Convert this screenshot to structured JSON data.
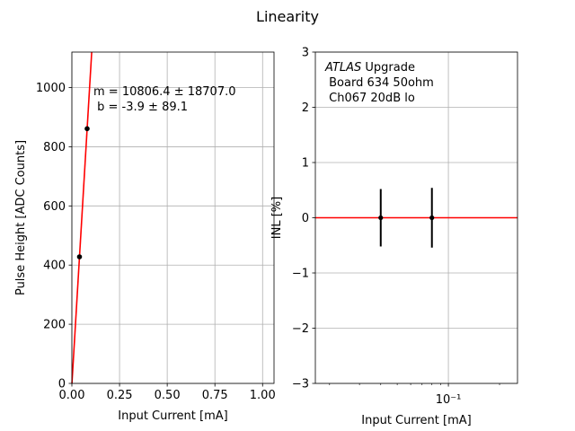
{
  "figure": {
    "title": "Linearity"
  },
  "chart_data": [
    {
      "type": "scatter",
      "title": "",
      "xlabel": "Input Current [mA]",
      "ylabel": "Pulse Height [ADC Counts]",
      "xlim": [
        0,
        1.06
      ],
      "ylim": [
        0,
        1120
      ],
      "xticks": [
        0.0,
        0.25,
        0.5,
        0.75,
        1.0
      ],
      "xtick_labels": [
        "0.00",
        "0.25",
        "0.50",
        "0.75",
        "1.00"
      ],
      "yticks": [
        0,
        200,
        400,
        600,
        800,
        1000
      ],
      "ytick_labels": [
        "0",
        "200",
        "400",
        "600",
        "800",
        "1000"
      ],
      "grid": true,
      "points": [
        {
          "x": 0.04,
          "y": 428
        },
        {
          "x": 0.08,
          "y": 861
        }
      ],
      "fit_line": {
        "slope": 10806.4,
        "intercept": -3.9,
        "color": "#ff0000"
      },
      "annotation": [
        "m = 10806.4 ± 18707.0",
        " b = -3.9 ± 89.1"
      ]
    },
    {
      "type": "scatter",
      "title": "",
      "xlabel": "Input Current [mA]",
      "ylabel": "INL [%]",
      "xscale": "log",
      "xlim": [
        0.0165,
        0.255
      ],
      "ylim": [
        -3,
        3
      ],
      "xticks_major": [
        0.1
      ],
      "xtick_labels": [
        "10⁻¹"
      ],
      "xticks_minor": [
        0.02,
        0.03,
        0.04,
        0.05,
        0.06,
        0.07,
        0.08,
        0.09,
        0.2
      ],
      "yticks": [
        -3,
        -2,
        -1,
        0,
        1,
        2,
        3
      ],
      "ytick_labels": [
        "−3",
        "−2",
        "−1",
        "0",
        "1",
        "2",
        "3"
      ],
      "grid": true,
      "points": [
        {
          "x": 0.04,
          "y": 0,
          "err": 0.52
        },
        {
          "x": 0.08,
          "y": 0,
          "err": 0.54
        }
      ],
      "hline": {
        "y": 0,
        "color": "#ff0000"
      },
      "annotation": {
        "italic": "ATLAS",
        "rest": " Upgrade",
        "lines": [
          " Board 634 50ohm",
          " Ch067 20dB lo"
        ]
      }
    }
  ]
}
